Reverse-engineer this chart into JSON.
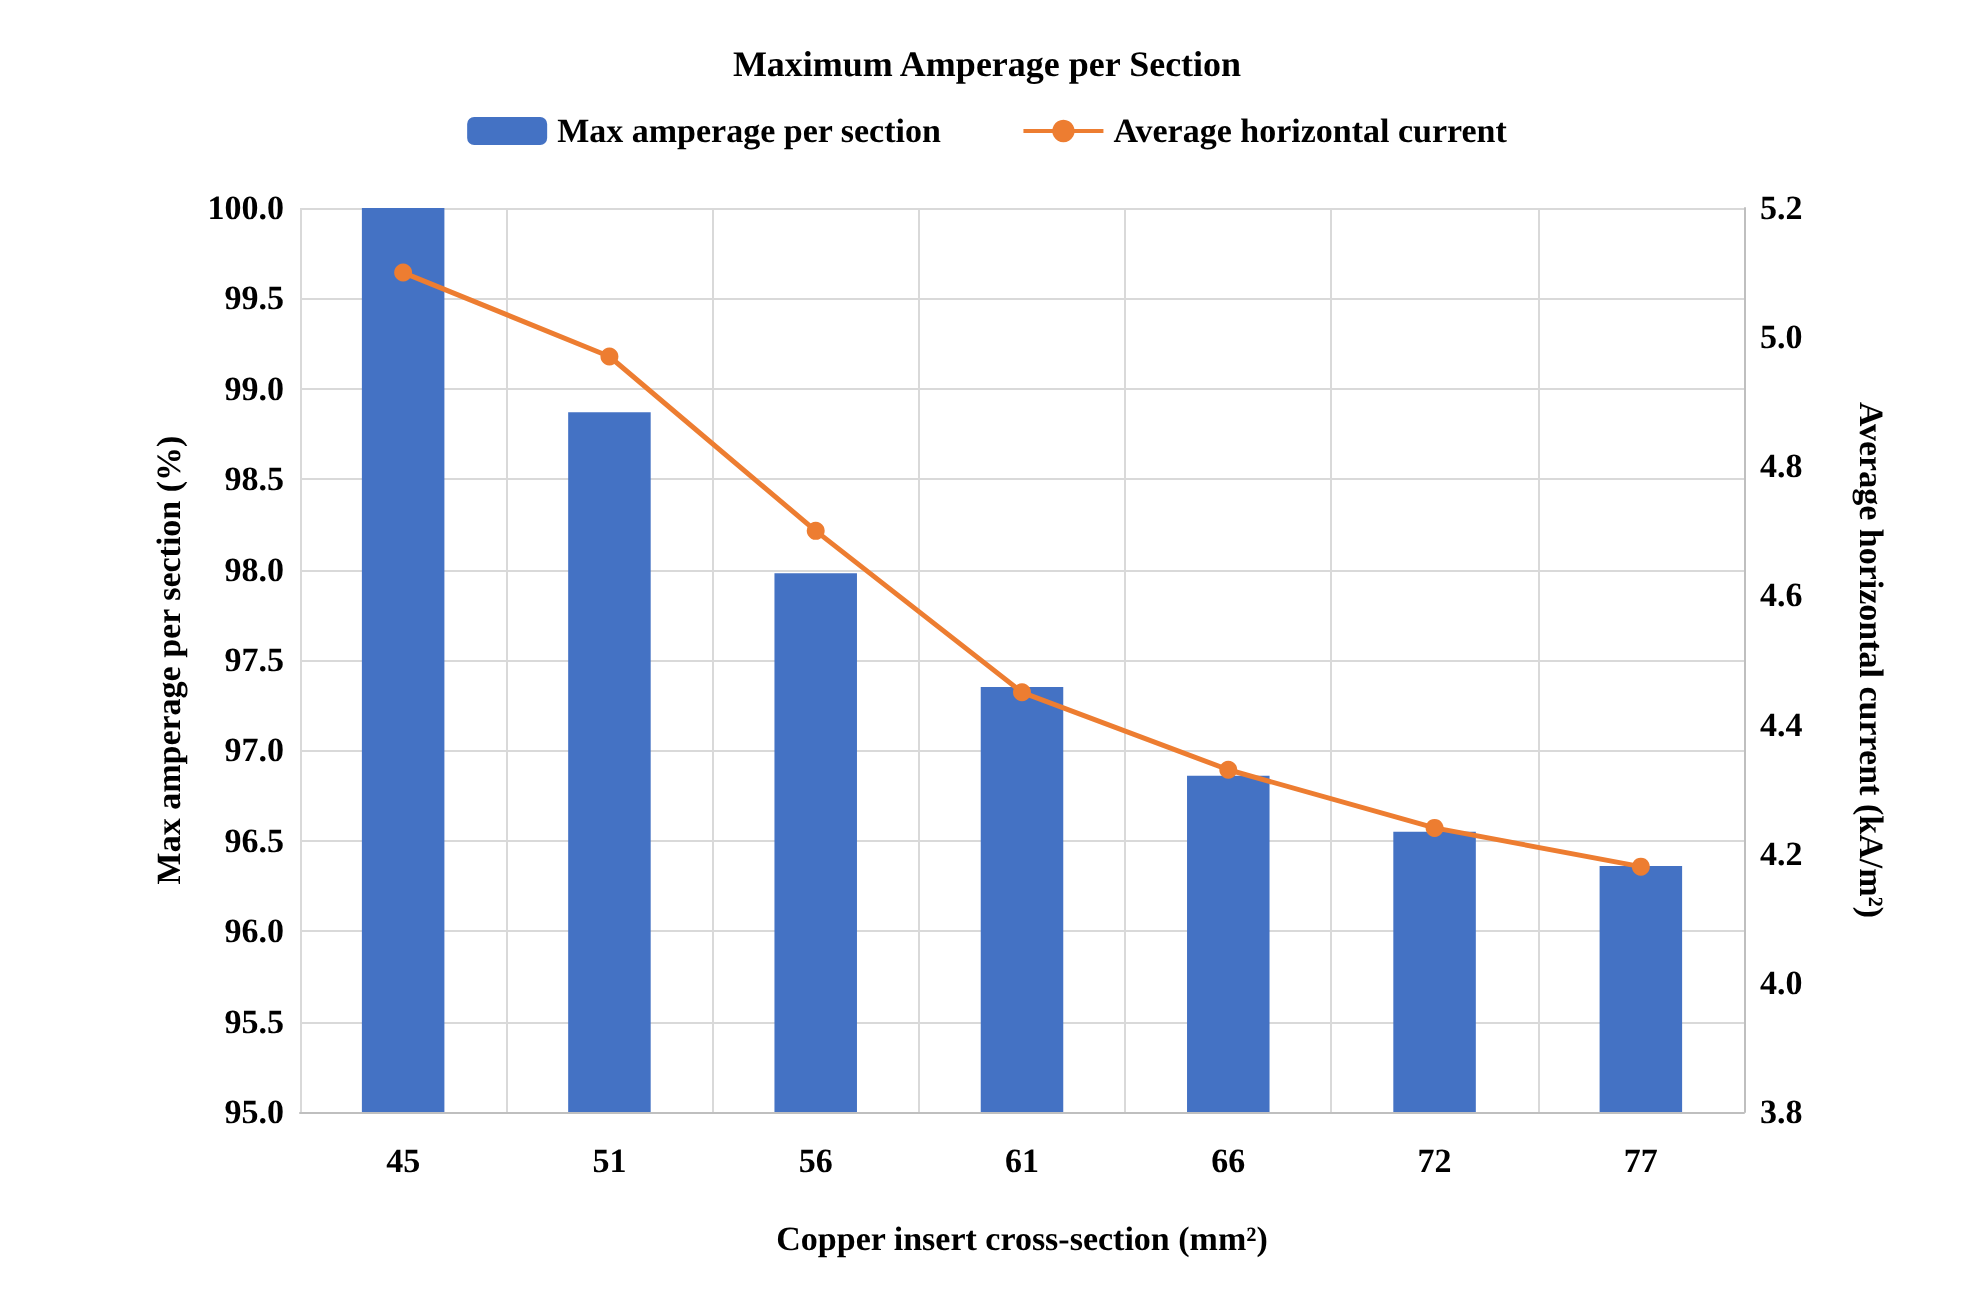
{
  "chart_data": {
    "type": "bar",
    "title": "Maximum Amperage per Section",
    "xlabel": "Copper insert cross-section (mm²)",
    "ylabel": "Max amperage per section (%)",
    "y2label": "Average horizontal current (kA/m²)",
    "categories": [
      "45",
      "51",
      "56",
      "61",
      "66",
      "72",
      "77"
    ],
    "series": [
      {
        "name": "Max amperage per section",
        "color": "#4472c4",
        "values": [
          100.0,
          98.87,
          97.98,
          97.35,
          96.86,
          96.55,
          96.36
        ]
      },
      {
        "name": "Average horizontal current",
        "type": "line",
        "axis": "y2",
        "color": "#ed7d31",
        "marker": "circle",
        "values": [
          5.1,
          4.97,
          4.7,
          4.45,
          4.33,
          4.24,
          4.18
        ]
      }
    ],
    "ylim": [
      95.0,
      100.0
    ],
    "yticks": [
      {
        "value": 95,
        "label": "95.0"
      },
      95.5,
      {
        "value": 96,
        "label": "96.0"
      },
      96.5,
      {
        "value": 97,
        "label": "97.0"
      },
      97.5,
      {
        "value": 98,
        "label": "98.0"
      },
      98.5,
      {
        "value": 99,
        "label": "99.0"
      },
      99.5,
      {
        "value": 100,
        "label": "100.0"
      }
    ],
    "y2lim": [
      3.8,
      5.2
    ],
    "y2ticks": [
      3.8,
      {
        "value": 4,
        "label": "4.0"
      },
      4.2,
      4.4,
      4.6,
      4.8,
      {
        "value": 5,
        "label": "5.0"
      },
      5.2
    ],
    "grid": true,
    "legend": "top"
  }
}
